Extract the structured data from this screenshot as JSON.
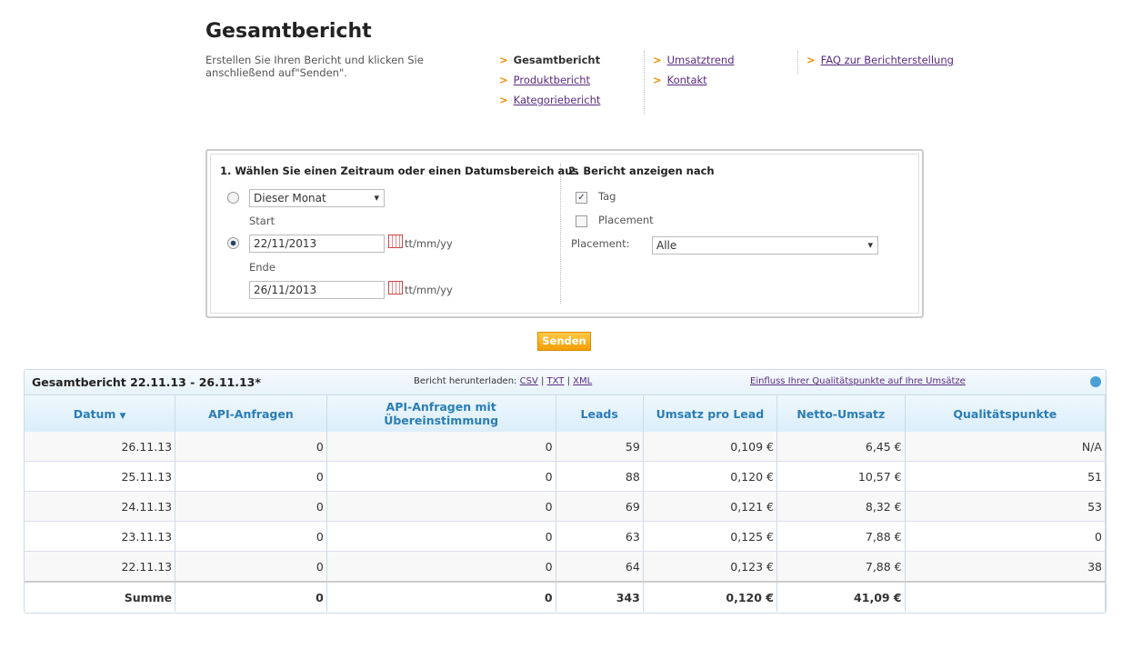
{
  "header": {
    "title": "Gesamtbericht",
    "description": "Erstellen Sie Ihren Bericht und klicken Sie anschließend auf\"Senden\"."
  },
  "nav": {
    "columns": [
      [
        "Gesamtbericht",
        "Produktbericht",
        "Kategoriebericht"
      ],
      [
        "Umsatztrend",
        "Kontakt"
      ],
      [
        "FAQ zur Berichterstellung"
      ]
    ]
  },
  "form": {
    "section1_title": "1. Wählen Sie einen Zeitraum oder einen Datumsbereich aus",
    "period_select": "Dieser Monat",
    "start_label": "Start",
    "start_date": "22/11/2013",
    "end_label": "Ende",
    "end_date": "26/11/2013",
    "date_format": "tt/mm/yy",
    "section2_title": "2. Bericht anzeigen nach",
    "check_day": "Tag",
    "check_placement": "Placement",
    "placement_label": "Placement:",
    "placement_select": "Alle",
    "submit": "Senden"
  },
  "report": {
    "title": "Gesamtbericht 22.11.13 - 26.11.13*",
    "download_label": "Bericht herunterladen:",
    "formats": [
      "CSV",
      "TXT",
      "XML"
    ],
    "quality_link": "Einfluss Ihrer Qualitätspunkte auf Ihre Umsätze",
    "columns": [
      "Datum",
      "API-Anfragen",
      "API-Anfragen mit Übereinstimmung",
      "Leads",
      "Umsatz pro Lead",
      "Netto-Umsatz",
      "Qualitätspunkte"
    ],
    "rows": [
      [
        "26.11.13",
        "0",
        "0",
        "59",
        "0,109 €",
        "6,45 €",
        "N/A"
      ],
      [
        "25.11.13",
        "0",
        "0",
        "88",
        "0,120 €",
        "10,57 €",
        "51"
      ],
      [
        "24.11.13",
        "0",
        "0",
        "69",
        "0,121 €",
        "8,32 €",
        "53"
      ],
      [
        "23.11.13",
        "0",
        "0",
        "63",
        "0,125 €",
        "7,88 €",
        "0"
      ],
      [
        "22.11.13",
        "0",
        "0",
        "64",
        "0,123 €",
        "7,88 €",
        "38"
      ]
    ],
    "totals": [
      "Summe",
      "0",
      "0",
      "343",
      "0,120 €",
      "41,09 €",
      ""
    ]
  }
}
